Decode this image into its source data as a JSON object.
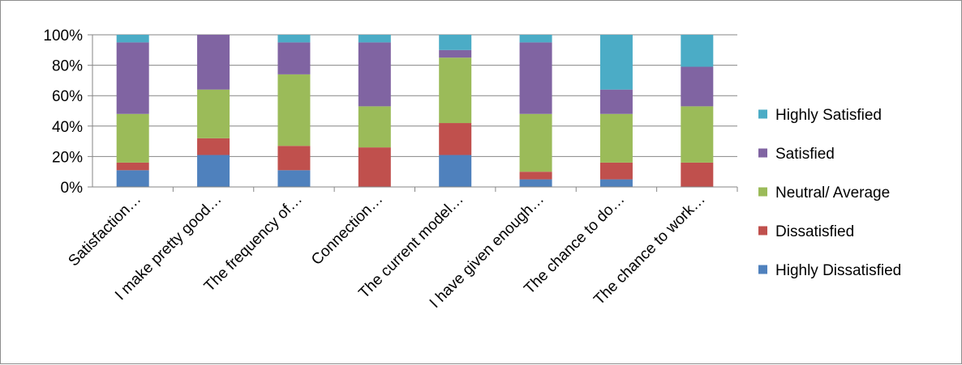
{
  "chart_data": {
    "type": "bar",
    "stacked": true,
    "percent_stacked": true,
    "categories": [
      "Satisfaction…",
      "I make pretty good…",
      "The frequency of…",
      "Connection…",
      "The current model…",
      "I have given enough…",
      "The chance to do…",
      "The chance to work…"
    ],
    "series": [
      {
        "name": "Highly Dissatisfied",
        "color": "#4f81bd",
        "values": [
          11,
          21,
          11,
          0,
          21,
          5,
          5,
          0
        ]
      },
      {
        "name": "Dissatisfied",
        "color": "#c0504d",
        "values": [
          5,
          11,
          16,
          26,
          21,
          5,
          11,
          16
        ]
      },
      {
        "name": "Neutral/ Average",
        "color": "#9bbb59",
        "values": [
          32,
          32,
          47,
          27,
          43,
          38,
          32,
          37
        ]
      },
      {
        "name": "Satisfied",
        "color": "#8064a2",
        "values": [
          47,
          36,
          21,
          42,
          5,
          47,
          16,
          26
        ]
      },
      {
        "name": "Highly Satisfied",
        "color": "#4bacc6",
        "values": [
          5,
          0,
          5,
          5,
          10,
          5,
          36,
          21
        ]
      }
    ],
    "ylim": [
      0,
      100
    ],
    "yticks": [
      "0%",
      "20%",
      "40%",
      "60%",
      "80%",
      "100%"
    ],
    "legend_order": [
      "Highly Satisfied",
      "Satisfied",
      "Neutral/ Average",
      "Dissatisfied",
      "Highly Dissatisfied"
    ],
    "legend_position": "right",
    "grid": true,
    "gridline_color": "#868686",
    "axis_color": "#868686"
  }
}
